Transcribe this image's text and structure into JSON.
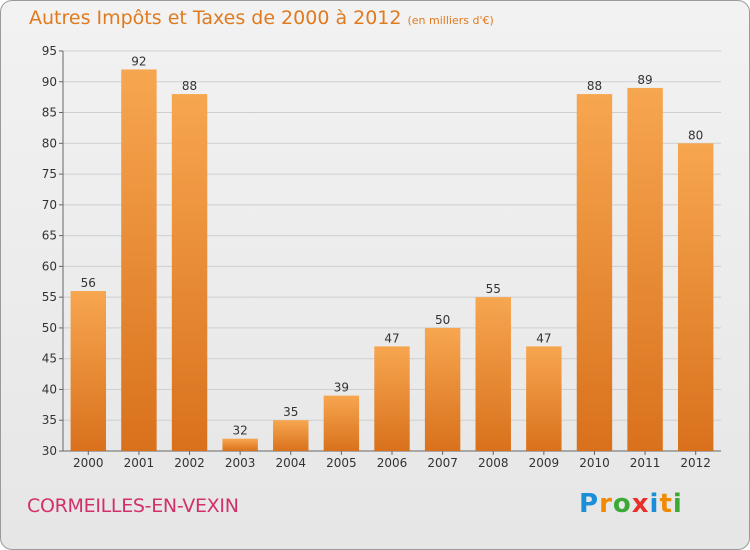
{
  "header": {
    "title": "Autres Impôts et Taxes de 2000 à 2012",
    "subtitle": "(en milliers d'€)"
  },
  "footer": {
    "commune": "CORMEILLES-EN-VEXIN",
    "logo_text": "Proxiti",
    "logo_letters": [
      {
        "char": "P",
        "color": "#1a8fd8"
      },
      {
        "char": "r",
        "color": "#f08a00"
      },
      {
        "char": "o",
        "color": "#3aaa35"
      },
      {
        "char": "x",
        "color": "#e8302a"
      },
      {
        "char": "i",
        "color": "#1a8fd8"
      },
      {
        "char": "t",
        "color": "#f08a00"
      },
      {
        "char": "i",
        "color": "#3aaa35"
      }
    ]
  },
  "colors": {
    "bar_light": "#f7a650",
    "bar_dark": "#d9711c",
    "grid": "#cfcfcf",
    "accent": "#e07a1f"
  },
  "chart_data": {
    "type": "bar",
    "categories": [
      "2000",
      "2001",
      "2002",
      "2003",
      "2004",
      "2005",
      "2006",
      "2007",
      "2008",
      "2009",
      "2010",
      "2011",
      "2012"
    ],
    "values": [
      56,
      92,
      88,
      32,
      35,
      39,
      47,
      50,
      55,
      47,
      88,
      89,
      80
    ],
    "title": "Autres Impôts et Taxes de 2000 à 2012",
    "subtitle": "(en milliers d'€)",
    "xlabel": "",
    "ylabel": "",
    "ylim": [
      30,
      95
    ],
    "yticks": [
      30,
      35,
      40,
      45,
      50,
      55,
      60,
      65,
      70,
      75,
      80,
      85,
      90,
      95
    ],
    "grid": true,
    "data_labels": true
  }
}
